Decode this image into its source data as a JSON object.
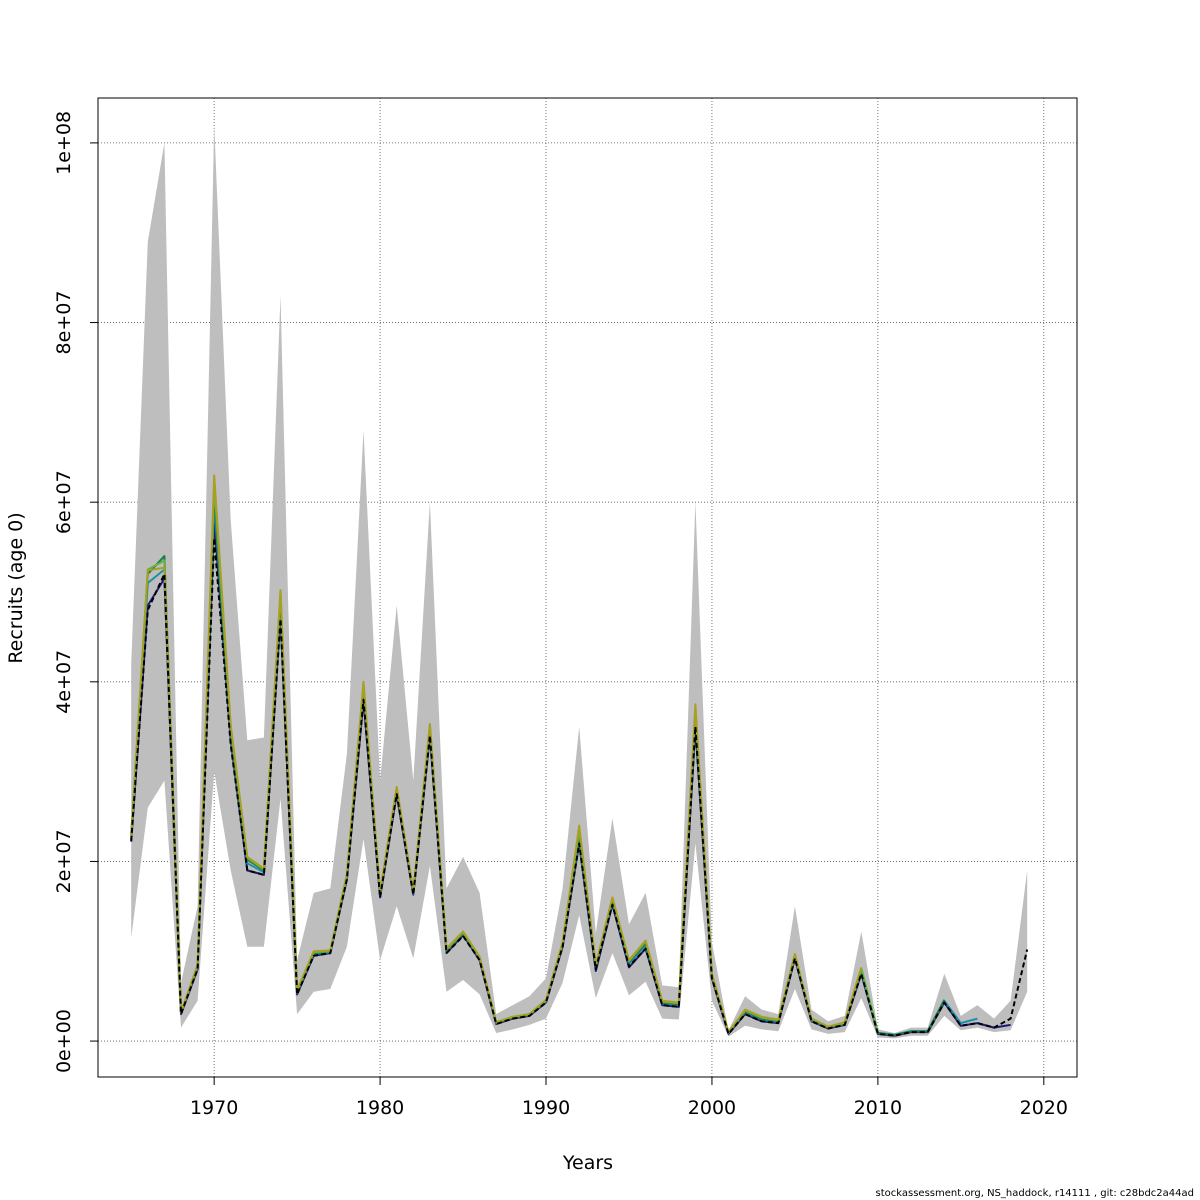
{
  "chart_data": {
    "type": "line",
    "title": "",
    "xlabel": "Years",
    "ylabel": "Recruits (age 0)",
    "xlim": [
      1963,
      2022
    ],
    "ylim": [
      -4000000,
      105000000
    ],
    "x_ticks": [
      1970,
      1980,
      1990,
      2000,
      2010,
      2020
    ],
    "x_tick_labels": [
      "1970",
      "1980",
      "1990",
      "2000",
      "2010",
      "2020"
    ],
    "y_ticks": [
      0,
      20000000,
      40000000,
      60000000,
      80000000,
      100000000
    ],
    "y_tick_labels": [
      "0e+00",
      "2e+07",
      "4e+07",
      "6e+07",
      "8e+07",
      "1e+08"
    ],
    "grid": true,
    "years": [
      1965,
      1966,
      1967,
      1968,
      1969,
      1970,
      1971,
      1972,
      1973,
      1974,
      1975,
      1976,
      1977,
      1978,
      1979,
      1980,
      1981,
      1982,
      1983,
      1984,
      1985,
      1986,
      1987,
      1988,
      1989,
      1990,
      1991,
      1992,
      1993,
      1994,
      1995,
      1996,
      1997,
      1998,
      1999,
      2000,
      2001,
      2002,
      2003,
      2004,
      2005,
      2006,
      2007,
      2008,
      2009,
      2010,
      2011,
      2012,
      2013,
      2014,
      2015,
      2016,
      2017,
      2018,
      2019
    ],
    "confidence_band": {
      "color": "#bebebe",
      "lower": [
        11500000,
        26000000,
        29000000,
        1500000,
        4500000,
        30000000,
        19000000,
        10500000,
        10500000,
        27000000,
        3000000,
        5500000,
        5800000,
        10500000,
        22500000,
        9000000,
        15000000,
        9200000,
        19500000,
        5500000,
        6800000,
        5200000,
        900000,
        1300000,
        1800000,
        2500000,
        6500000,
        14000000,
        4800000,
        9800000,
        5100000,
        6600000,
        2500000,
        2400000,
        22000000,
        4500000,
        500000,
        1700000,
        1300000,
        1100000,
        5800000,
        1300000,
        800000,
        1000000,
        4800000,
        400000,
        300000,
        600000,
        600000,
        2800000,
        1200000,
        1500000,
        1000000,
        1200000,
        5500000
      ],
      "upper": [
        42000000,
        89000000,
        100000000,
        6500000,
        15000000,
        102000000,
        58000000,
        33500000,
        33800000,
        83000000,
        9000000,
        16500000,
        17000000,
        32000000,
        68000000,
        29000000,
        48500000,
        29000000,
        60000000,
        17000000,
        20500000,
        16500000,
        3000000,
        4000000,
        5000000,
        7000000,
        17000000,
        35000000,
        12000000,
        24800000,
        13000000,
        16500000,
        6200000,
        6000000,
        60000000,
        11000000,
        1200000,
        5000000,
        3500000,
        3000000,
        15000000,
        3500000,
        2200000,
        2800000,
        12200000,
        1300000,
        900000,
        1500000,
        1500000,
        7500000,
        2800000,
        4000000,
        2500000,
        4500000,
        19000000
      ]
    },
    "series": [
      {
        "color": "#1a1a7a",
        "dash": "solid",
        "start_year": 1965,
        "values": [
          22200000,
          48500000,
          51500000,
          3000000,
          8000000,
          58000000,
          33500000,
          19000000,
          18500000,
          47500000,
          5200000,
          9500000,
          9800000,
          18000000,
          38000000,
          16000000,
          27500000,
          16300000,
          34000000,
          9800000,
          11800000,
          9000000,
          1900000,
          2500000,
          2800000,
          4300000,
          10500000,
          22000000,
          7800000,
          15200000,
          8200000,
          10300000,
          4000000,
          3800000,
          35000000,
          7000000,
          800000,
          3000000,
          2200000,
          2000000,
          9200000,
          2200000,
          1400000,
          1800000,
          7500000,
          800000,
          600000,
          1000000,
          1000000,
          4300000,
          1700000,
          2000000,
          1500000,
          1800000
        ]
      },
      {
        "color": "#1f8fa8",
        "dash": "solid",
        "start_year": 1965,
        "values": [
          23000000,
          51000000,
          52500000,
          3100000,
          8200000,
          60000000,
          34000000,
          19800000,
          18800000,
          48500000,
          5400000,
          9700000,
          9900000,
          18200000,
          39000000,
          16200000,
          28000000,
          16400000,
          34500000,
          10000000,
          12000000,
          9200000,
          2000000,
          2600000,
          2900000,
          4400000,
          10700000,
          22500000,
          8200000,
          15500000,
          8600000,
          10700000,
          4200000,
          4000000,
          36000000,
          7200000,
          900000,
          3200000,
          2400000,
          2100000,
          9400000,
          2300000,
          1500000,
          1900000,
          7800000,
          900000,
          700000,
          1100000,
          1100000,
          4500000,
          2000000,
          2500000
        ]
      },
      {
        "color": "#1e7a4a",
        "dash": "solid",
        "start_year": 1965,
        "values": [
          22800000,
          52000000,
          54000000,
          3100000,
          8300000,
          61000000,
          34500000,
          20200000,
          19000000,
          49500000,
          5500000,
          9800000,
          10000000,
          18400000,
          39500000,
          16400000,
          28100000,
          16500000,
          35000000,
          10100000,
          12000000,
          9300000,
          2000000,
          2600000,
          2900000,
          4500000,
          10800000,
          23000000,
          8300000,
          15700000,
          8800000,
          10900000,
          4300000,
          4100000,
          36500000,
          7300000,
          900000,
          3300000,
          2500000,
          2200000,
          9500000,
          2400000,
          1500000,
          1900000,
          8000000,
          900000,
          700000,
          1100000,
          1100000,
          4600000
        ]
      },
      {
        "color": "#63b342",
        "dash": "solid",
        "start_year": 1965,
        "values": [
          23000000,
          52500000,
          53500000,
          3200000,
          8400000,
          62000000,
          35000000,
          20400000,
          19100000,
          50000000,
          5600000,
          9900000,
          10000000,
          18500000,
          39700000,
          16500000,
          28200000,
          16600000,
          35200000,
          10200000,
          12100000,
          9300000,
          2100000,
          2700000,
          3000000,
          4500000,
          10900000,
          23500000,
          8400000,
          15900000,
          8900000,
          11100000,
          4400000,
          4200000,
          37000000,
          7400000,
          1000000,
          3400000,
          2600000,
          2300000,
          9600000,
          2500000,
          1600000,
          2000000,
          8100000,
          1000000
        ]
      },
      {
        "color": "#a8a020",
        "dash": "solid",
        "start_year": 1965,
        "values": [
          22500000,
          52400000,
          52700000,
          3200000,
          8500000,
          63000000,
          35200000,
          20500000,
          19200000,
          50200000,
          5700000,
          10000000,
          10100000,
          18600000,
          40000000,
          16600000,
          28300000,
          16700000,
          35300000,
          10300000,
          12200000,
          9400000,
          2100000,
          2700000,
          3000000,
          4600000,
          11000000,
          24000000,
          8500000,
          16000000,
          9000000,
          11200000,
          4500000,
          4300000,
          37500000,
          7500000,
          1000000,
          3500000,
          2700000,
          2400000,
          9700000,
          2500000,
          1600000,
          2100000,
          8200000
        ]
      },
      {
        "color": "#000000",
        "dash": "dashed",
        "start_year": 1965,
        "values": [
          22300000,
          48000000,
          52000000,
          3000000,
          8000000,
          56000000,
          33000000,
          19000000,
          18500000,
          47000000,
          5200000,
          9500000,
          9800000,
          18000000,
          38000000,
          16000000,
          27500000,
          16300000,
          34000000,
          9800000,
          11700000,
          9000000,
          1900000,
          2500000,
          2800000,
          4300000,
          10500000,
          22000000,
          8000000,
          15200000,
          8300000,
          10300000,
          4000000,
          3800000,
          35000000,
          7000000,
          800000,
          3000000,
          2200000,
          2000000,
          9200000,
          2200000,
          1400000,
          1800000,
          7500000,
          800000,
          600000,
          1000000,
          1000000,
          4300000,
          1700000,
          2000000,
          1500000,
          2500000,
          10200000
        ]
      }
    ]
  },
  "footer": {
    "credit": "stockassessment.org, NS_haddock, r14111 , git: c28bdc2a44ad"
  }
}
